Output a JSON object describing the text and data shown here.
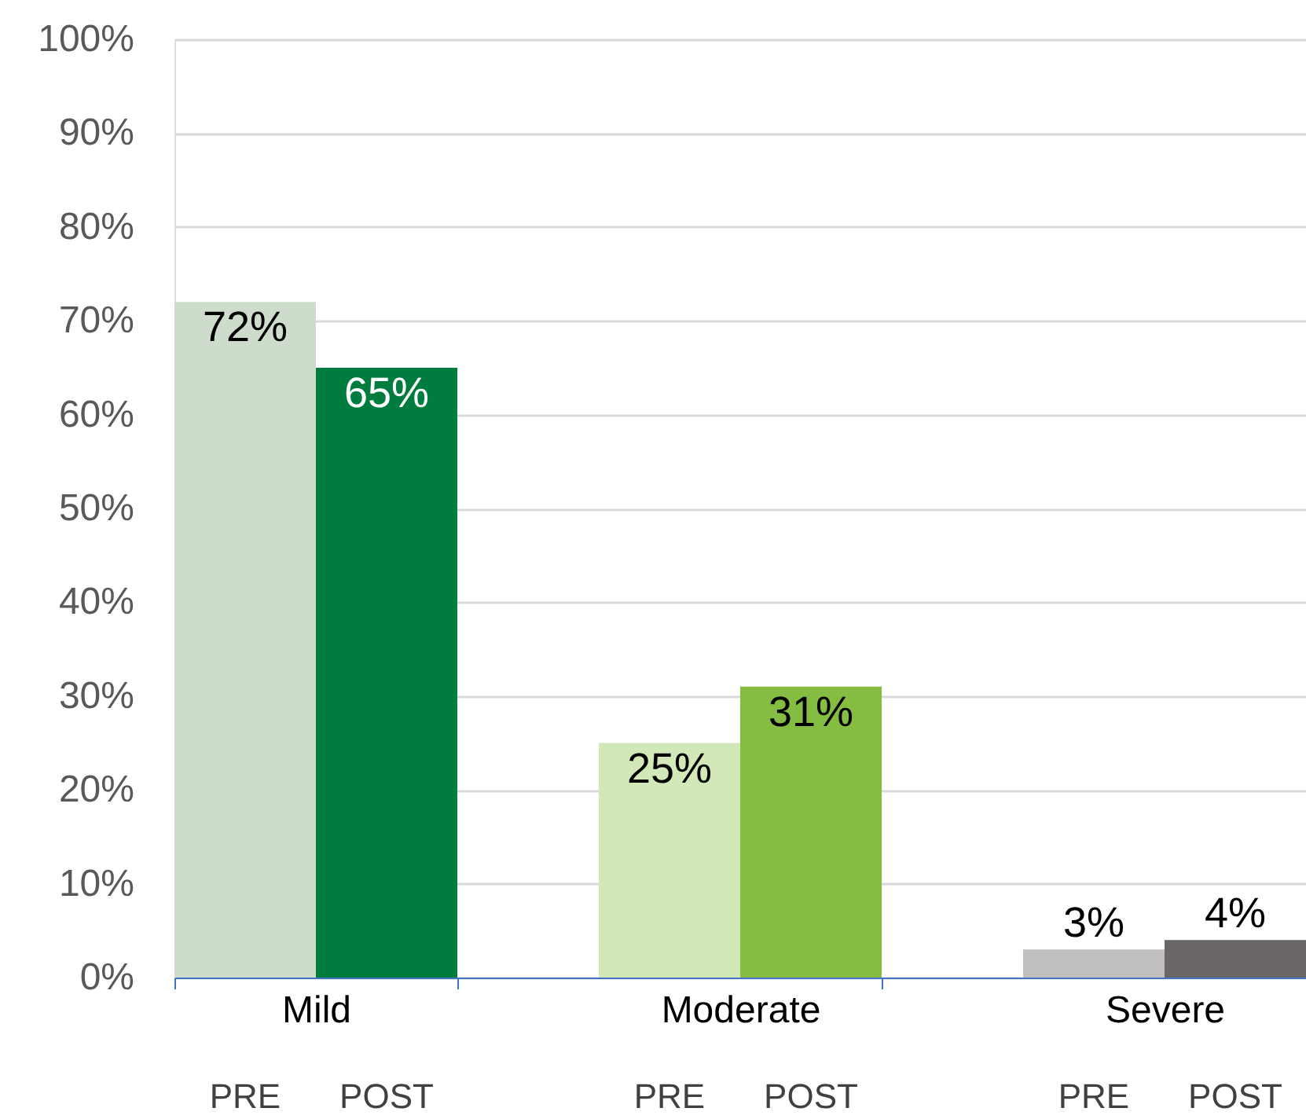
{
  "chart_data": {
    "type": "bar",
    "categories": [
      "Mild",
      "Moderate",
      "Severe"
    ],
    "series": [
      {
        "name": "PRE",
        "colors": [
          "#cddccb",
          "#d3e8b8",
          "#c0bebe"
        ],
        "values": [
          72,
          25,
          3
        ],
        "value_labels": [
          "72%",
          "25%",
          "3%"
        ]
      },
      {
        "name": "POST",
        "colors": [
          "#007c3e",
          "#84bd41",
          "#6b6666"
        ],
        "values": [
          65,
          31,
          4
        ],
        "value_labels": [
          "65%",
          "31%",
          "4%"
        ]
      }
    ],
    "ylim": [
      0,
      100
    ],
    "yticks": [
      {
        "value": 0,
        "label": "0%"
      },
      {
        "value": 10,
        "label": "10%"
      },
      {
        "value": 20,
        "label": "20%"
      },
      {
        "value": 30,
        "label": "30%"
      },
      {
        "value": 40,
        "label": "40%"
      },
      {
        "value": 50,
        "label": "50%"
      },
      {
        "value": 60,
        "label": "60%"
      },
      {
        "value": 70,
        "label": "70%"
      },
      {
        "value": 80,
        "label": "80%"
      },
      {
        "value": 90,
        "label": "90%"
      },
      {
        "value": 100,
        "label": "100%"
      }
    ],
    "grid": "y"
  }
}
